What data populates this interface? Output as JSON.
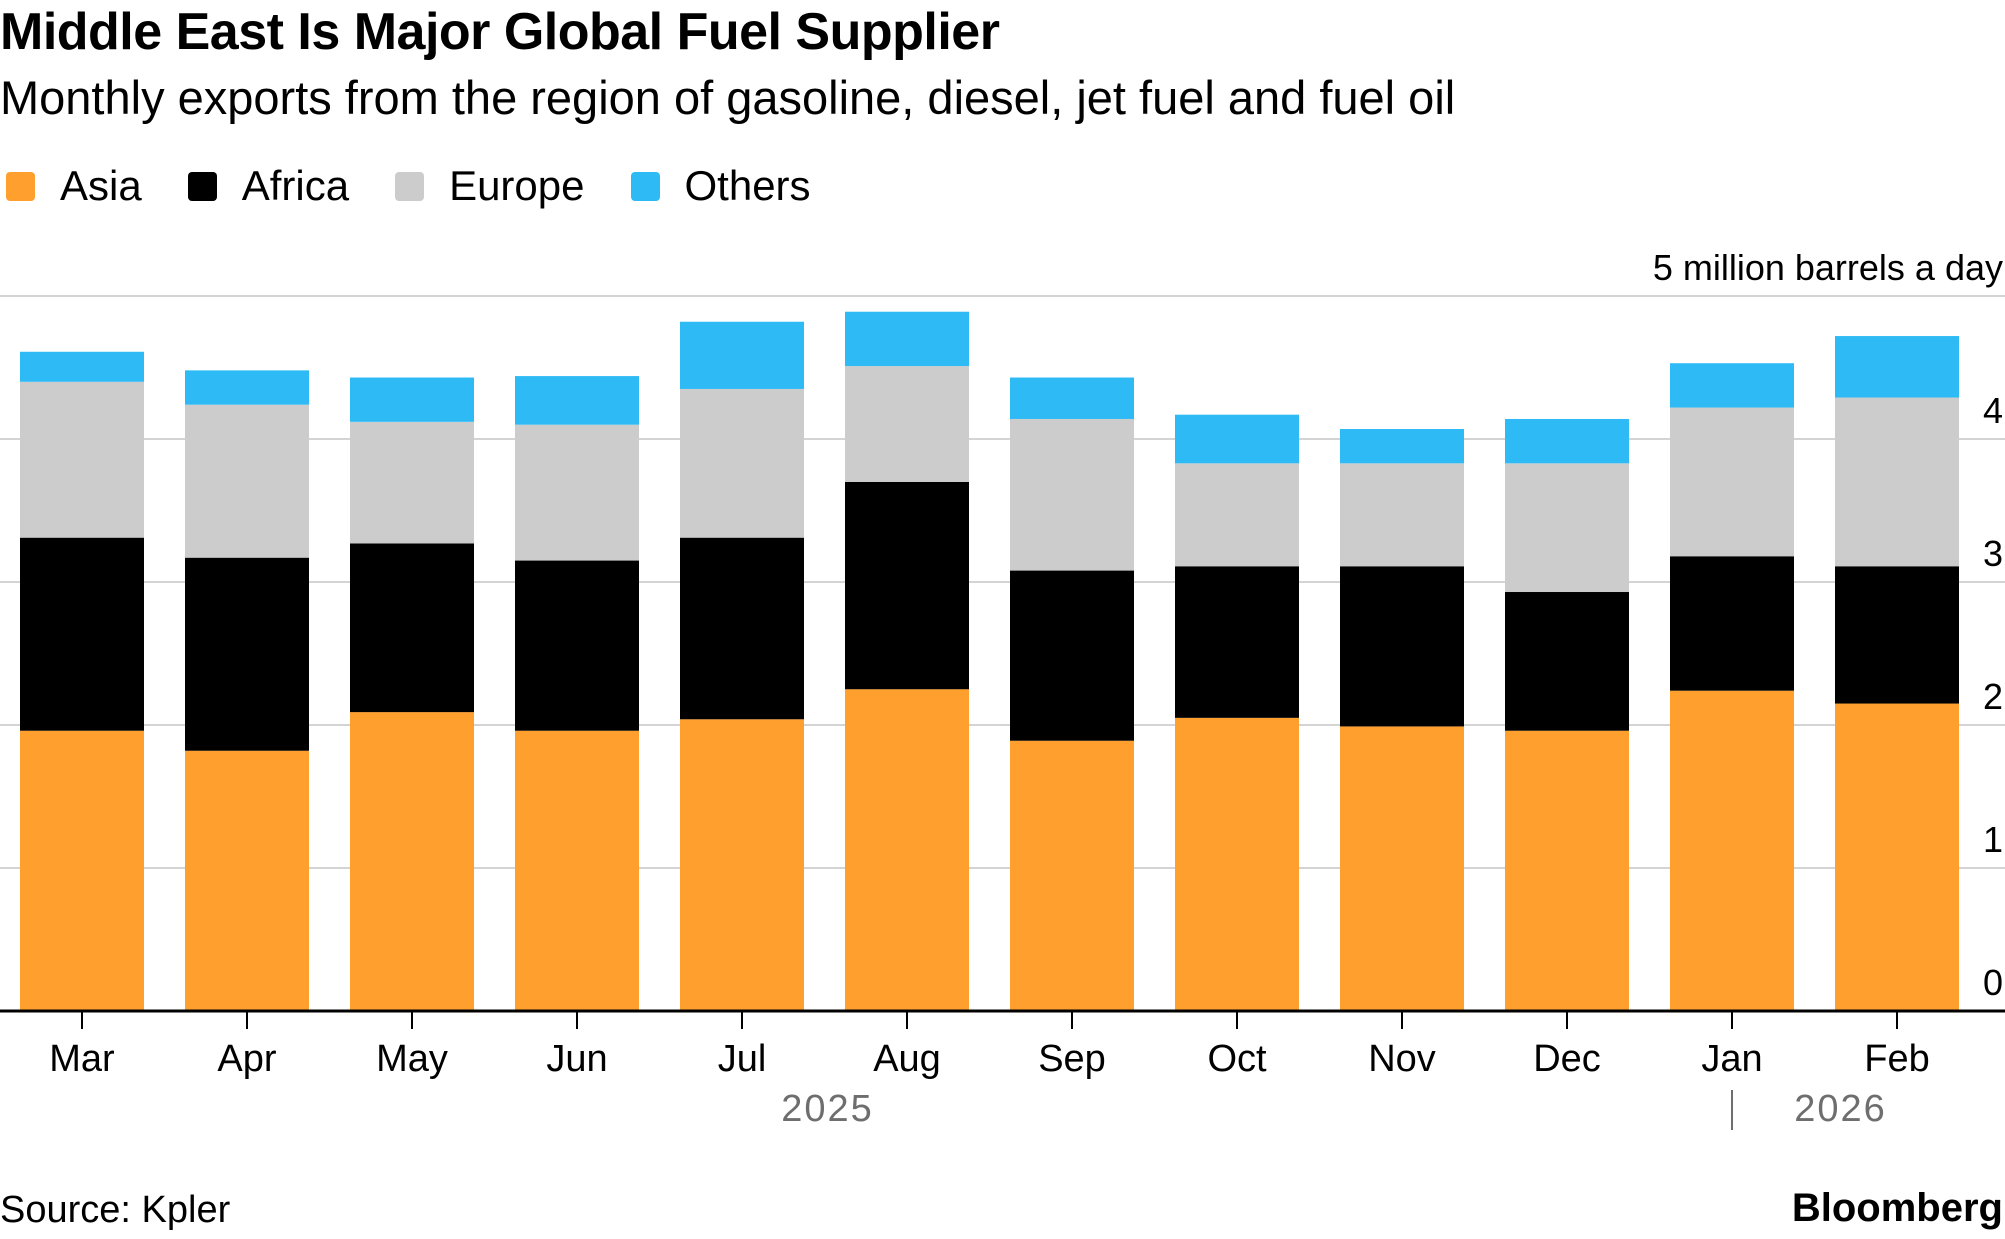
{
  "header": {
    "title": "Middle East Is Major Global Fuel Supplier",
    "subtitle": "Monthly exports from the region of gasoline, diesel, jet fuel and fuel oil"
  },
  "legend": [
    {
      "label": "Asia",
      "color": "#FF9F2D"
    },
    {
      "label": "Africa",
      "color": "#000000"
    },
    {
      "label": "Europe",
      "color": "#CCCCCC"
    },
    {
      "label": "Others",
      "color": "#2EBBF5"
    }
  ],
  "footer": {
    "source": "Source: Kpler",
    "brand": "Bloomberg"
  },
  "chart_data": {
    "type": "bar",
    "stacked": true,
    "title": "Middle East Is Major Global Fuel Supplier",
    "subtitle": "Monthly exports from the region of gasoline, diesel, jet fuel and fuel oil",
    "unit_label": "5 million barrels a day",
    "categories": [
      "Mar",
      "Apr",
      "May",
      "Jun",
      "Jul",
      "Aug",
      "Sep",
      "Oct",
      "Nov",
      "Dec",
      "Jan",
      "Feb"
    ],
    "year_labels": [
      {
        "label": "2025",
        "under": [
          "Mar",
          "Dec"
        ]
      },
      {
        "label": "2026",
        "under": [
          "Jan",
          "Feb"
        ]
      }
    ],
    "series": [
      {
        "name": "Asia",
        "color": "#FF9F2D",
        "values": [
          1.96,
          1.82,
          2.09,
          1.96,
          2.04,
          2.25,
          1.89,
          2.05,
          1.99,
          1.96,
          2.24,
          2.15
        ]
      },
      {
        "name": "Africa",
        "color": "#000000",
        "values": [
          1.35,
          1.35,
          1.18,
          1.19,
          1.27,
          1.45,
          1.19,
          1.06,
          1.12,
          0.97,
          0.94,
          0.96
        ]
      },
      {
        "name": "Europe",
        "color": "#CCCCCC",
        "values": [
          1.09,
          1.07,
          0.85,
          0.95,
          1.04,
          0.81,
          1.06,
          0.72,
          0.72,
          0.9,
          1.04,
          1.18
        ]
      },
      {
        "name": "Others",
        "color": "#2EBBF5",
        "values": [
          0.21,
          0.24,
          0.31,
          0.34,
          0.47,
          0.38,
          0.29,
          0.34,
          0.24,
          0.31,
          0.31,
          0.43
        ]
      }
    ],
    "yticks": [
      0,
      1,
      2,
      3,
      4,
      5
    ],
    "ytick_labels": [
      "0",
      "1",
      "2",
      "3",
      "4",
      "5 million barrels a day"
    ],
    "ylim": [
      0,
      5
    ],
    "xlabel": "",
    "ylabel": "",
    "grid": true
  }
}
